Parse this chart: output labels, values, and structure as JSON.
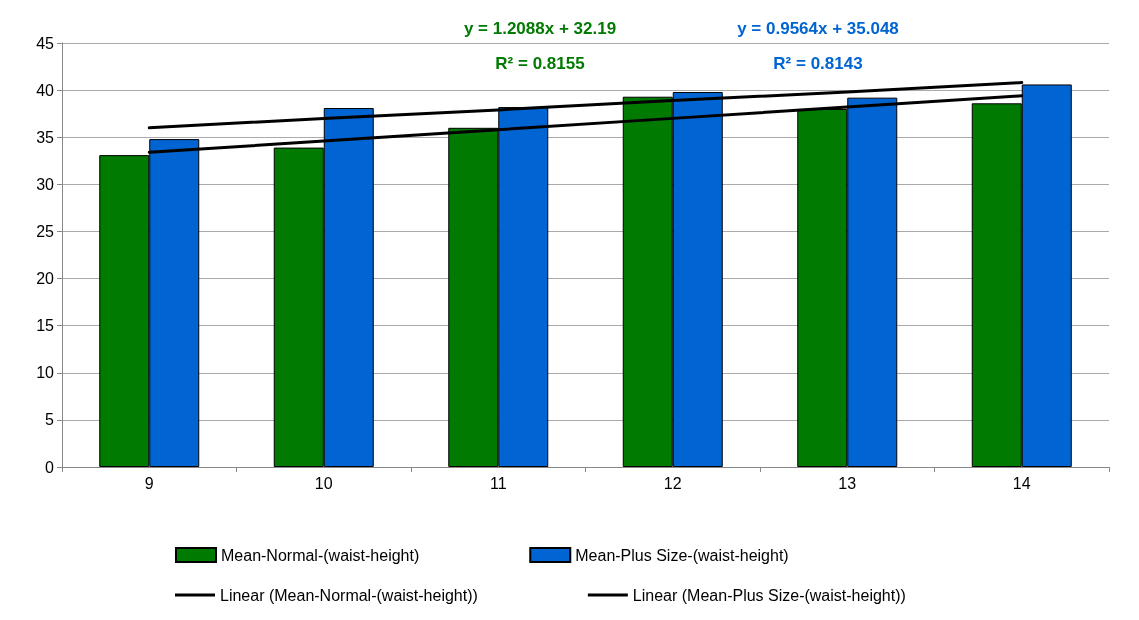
{
  "chart_data": {
    "type": "bar",
    "categories": [
      "9",
      "10",
      "11",
      "12",
      "13",
      "14"
    ],
    "series": [
      {
        "name": "Mean-Normal-(waist-height)",
        "color": "#007a00",
        "values": [
          33.1,
          33.9,
          36.0,
          39.3,
          38.0,
          38.6
        ]
      },
      {
        "name": "Mean-Plus Size-(waist-height)",
        "color": "#0064d2",
        "values": [
          34.8,
          38.1,
          38.2,
          39.8,
          39.2,
          40.6
        ]
      },
      {
        "name": "Linear (Mean-Normal-(waist-height))",
        "type": "line",
        "color": "#000000",
        "values": [
          33.4,
          34.6,
          35.8,
          37.0,
          38.2,
          39.4
        ]
      },
      {
        "name": "Linear (Mean-Plus Size-(waist-height))",
        "type": "line",
        "color": "#000000",
        "values": [
          36.0,
          37.0,
          37.9,
          38.9,
          39.8,
          40.8
        ]
      }
    ],
    "annotations": [
      "y = 1.2088x + 32.19",
      "R² = 0.8155",
      "y = 0.9564x + 35.048",
      "R² = 0.8143"
    ],
    "ylim": [
      0,
      45
    ],
    "yticks": [
      0,
      5,
      10,
      15,
      20,
      25,
      30,
      35,
      40,
      45
    ],
    "grid": "y",
    "legend": "bottom",
    "marker": "none",
    "line_style": "solid"
  }
}
